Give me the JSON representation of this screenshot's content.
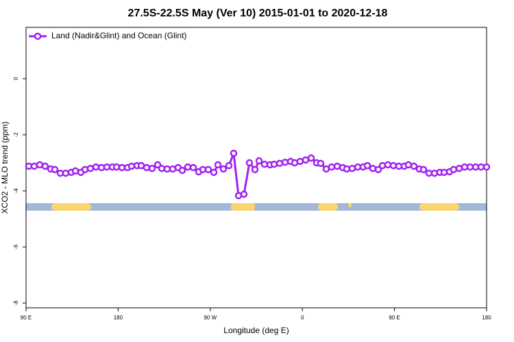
{
  "chart_data": {
    "type": "line",
    "title": "27.5S-22.5S May (Ver 10)   2015-01-01 to 2020-12-18",
    "x_label": "Longitude (deg E)",
    "y_label": "XCO2 - MLO trend (ppm)",
    "xlim": [
      90,
      540
    ],
    "ylim": [
      -8.17,
      1.83
    ],
    "xticks": [
      {
        "value": 90,
        "label": "90 E"
      },
      {
        "value": 180,
        "label": "180"
      },
      {
        "value": 270,
        "label": "90 W"
      },
      {
        "value": 360,
        "label": "0"
      },
      {
        "value": 450,
        "label": "90 E"
      },
      {
        "value": 540,
        "label": "180"
      }
    ],
    "yticks": [
      0,
      -2,
      -4,
      -6,
      -8
    ],
    "legend": "top-left",
    "x": [
      92.7,
      98.0,
      103.4,
      108.7,
      114.1,
      118.1,
      123.5,
      128.8,
      134.2,
      138.2,
      143.6,
      147.6,
      152.9,
      158.3,
      163.7,
      169.0,
      174.4,
      178.4,
      183.7,
      189.1,
      193.1,
      198.5,
      202.5,
      207.8,
      213.2,
      218.6,
      222.6,
      227.9,
      233.3,
      238.6,
      242.7,
      248.0,
      253.4,
      258.7,
      262.8,
      268.1,
      273.5,
      277.5,
      282.8,
      288.2,
      292.9,
      297.6,
      302.9,
      308.3,
      313.7,
      317.7,
      323.0,
      328.4,
      332.4,
      337.8,
      343.1,
      348.5,
      352.5,
      357.8,
      363.2,
      368.6,
      373.9,
      377.9,
      383.3,
      388.6,
      394.0,
      399.4,
      403.4,
      408.7,
      414.1,
      419.4,
      423.5,
      428.8,
      434.2,
      438.2,
      443.5,
      448.9,
      454.3,
      459.6,
      463.6,
      469.0,
      474.3,
      478.4,
      483.7,
      489.1,
      494.4,
      498.5,
      503.8,
      507.8,
      513.2,
      518.6,
      523.9,
      529.3,
      534.6,
      540.0
    ],
    "series": [
      {
        "name": "Land (Nadir&Glint) and Ocean (Glint)",
        "color": "#a020f0",
        "values": [
          -3.12,
          -3.12,
          -3.07,
          -3.12,
          -3.22,
          -3.24,
          -3.37,
          -3.37,
          -3.34,
          -3.29,
          -3.34,
          -3.24,
          -3.2,
          -3.15,
          -3.17,
          -3.15,
          -3.15,
          -3.15,
          -3.17,
          -3.17,
          -3.12,
          -3.1,
          -3.1,
          -3.17,
          -3.2,
          -3.07,
          -3.2,
          -3.22,
          -3.22,
          -3.17,
          -3.27,
          -3.15,
          -3.17,
          -3.32,
          -3.24,
          -3.24,
          -3.34,
          -3.07,
          -3.22,
          -3.1,
          -2.66,
          -4.17,
          -4.12,
          -3.0,
          -3.24,
          -2.93,
          -3.05,
          -3.07,
          -3.05,
          -3.02,
          -2.98,
          -2.95,
          -3.0,
          -2.95,
          -2.9,
          -2.83,
          -3.0,
          -3.02,
          -3.22,
          -3.15,
          -3.12,
          -3.17,
          -3.22,
          -3.2,
          -3.15,
          -3.15,
          -3.1,
          -3.2,
          -3.24,
          -3.1,
          -3.07,
          -3.1,
          -3.12,
          -3.12,
          -3.07,
          -3.12,
          -3.22,
          -3.24,
          -3.37,
          -3.37,
          -3.34,
          -3.34,
          -3.32,
          -3.24,
          -3.2,
          -3.15,
          -3.15,
          -3.15,
          -3.15,
          -3.15
        ]
      }
    ]
  }
}
